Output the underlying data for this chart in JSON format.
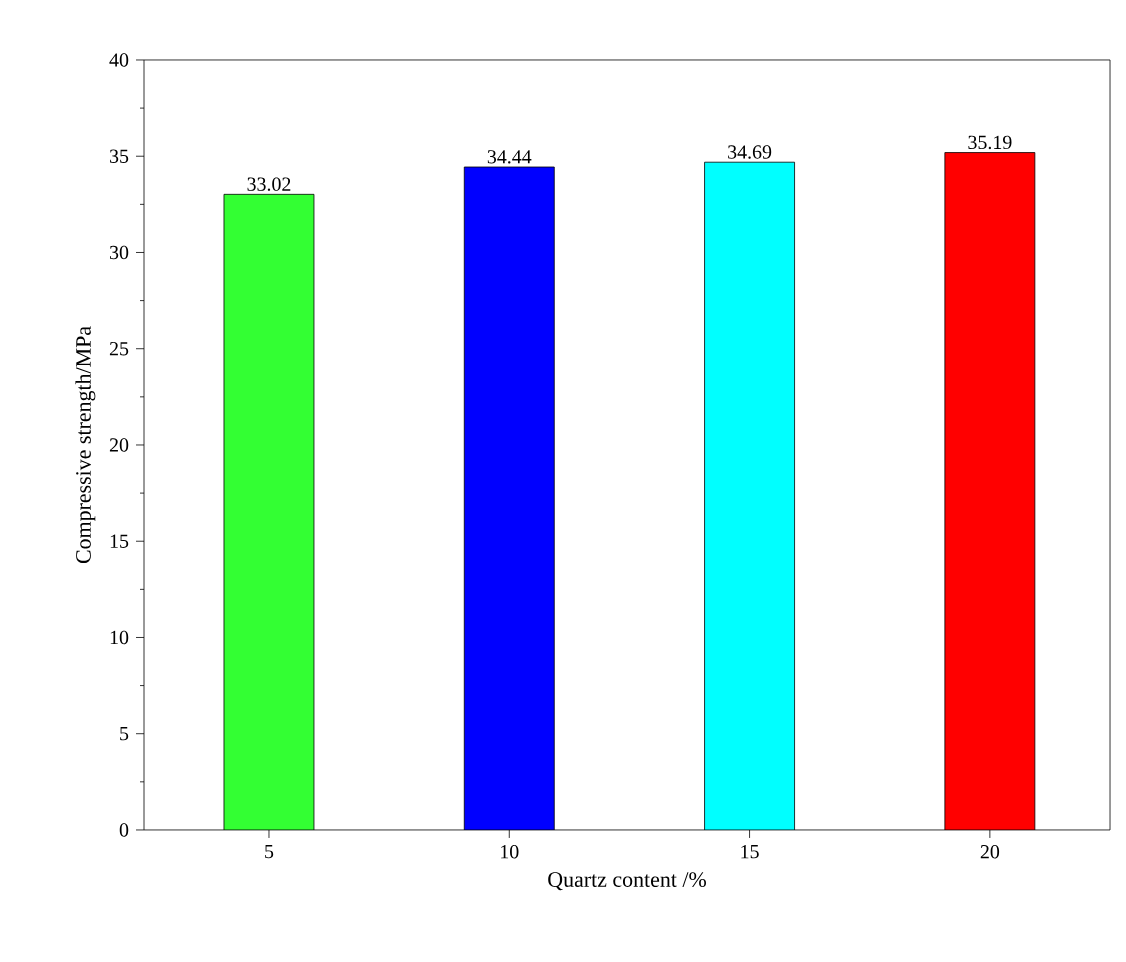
{
  "chart_data": {
    "type": "bar",
    "xlabel": "Quartz content /%",
    "ylabel": "Compressive strength/MPa",
    "categories": [
      "5",
      "10",
      "15",
      "20"
    ],
    "values": [
      33.02,
      34.44,
      34.69,
      35.19
    ],
    "colors": [
      "#33ff33",
      "#0000ff",
      "#00ffff",
      "#ff0000"
    ],
    "ylim": [
      0,
      40
    ],
    "yticks": [
      0,
      5,
      10,
      15,
      20,
      25,
      30,
      35,
      40
    ],
    "data_labels": true
  }
}
